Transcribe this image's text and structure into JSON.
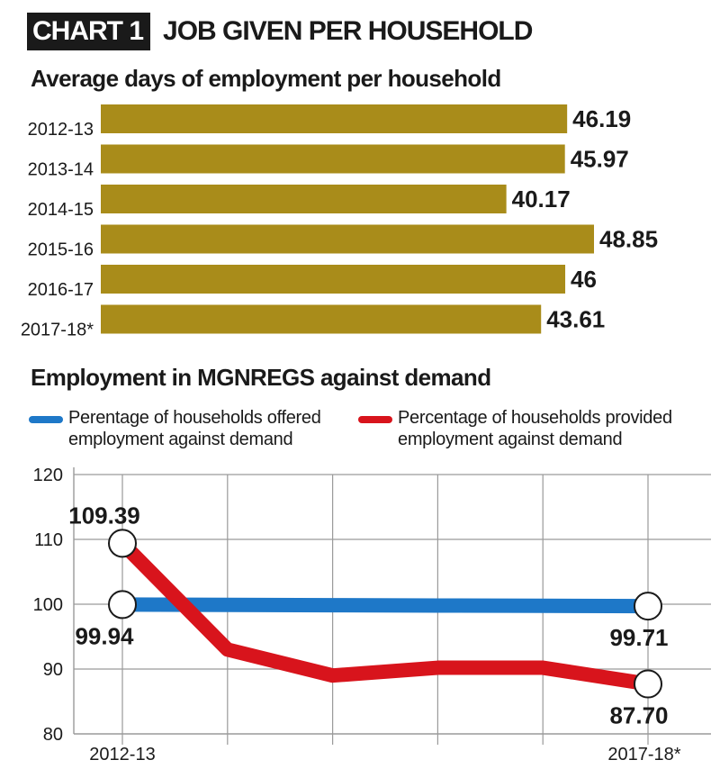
{
  "header": {
    "badge": "CHART 1",
    "title": "JOB GIVEN PER HOUSEHOLD"
  },
  "colors": {
    "bar": "#a98c1a",
    "blue": "#1e78c8",
    "red": "#d8141c",
    "grid": "#9a9a9a"
  },
  "chart_data": [
    {
      "type": "bar",
      "orientation": "horizontal",
      "title": "Average days of employment per household",
      "categories": [
        "2012-13",
        "2013-14",
        "2014-15",
        "2015-16",
        "2016-17",
        "2017-18*"
      ],
      "values": [
        46.19,
        45.97,
        40.17,
        48.85,
        46,
        43.61
      ],
      "value_labels": [
        "46.19",
        "45.97",
        "40.17",
        "48.85",
        "46",
        "43.61"
      ],
      "xlim": [
        0,
        48.85
      ]
    },
    {
      "type": "line",
      "title": "Employment in MGNREGS against demand",
      "x": [
        "2012-13",
        "",
        "",
        "",
        "",
        "2017-18*"
      ],
      "x_tick_labels": [
        "2012-13",
        "2017-18*"
      ],
      "ylim": [
        80,
        120
      ],
      "y_ticks": [
        80,
        90,
        100,
        110,
        120
      ],
      "grid": true,
      "legend": "top",
      "series": [
        {
          "name": "Perentage of households offered employment against demand",
          "color": "blue",
          "values": [
            99.94,
            99.9,
            99.85,
            99.8,
            99.75,
            99.71
          ],
          "labels": [
            {
              "index": 0,
              "text": "99.94",
              "pos": "below"
            },
            {
              "index": 5,
              "text": "99.71",
              "pos": "below"
            }
          ]
        },
        {
          "name": "Percentage of households provided employment against demand",
          "color": "red",
          "values": [
            109.39,
            93,
            89,
            90.2,
            90.2,
            87.7
          ],
          "labels": [
            {
              "index": 0,
              "text": "109.39",
              "pos": "above"
            },
            {
              "index": 5,
              "text": "87.70",
              "pos": "below"
            }
          ]
        }
      ]
    }
  ]
}
